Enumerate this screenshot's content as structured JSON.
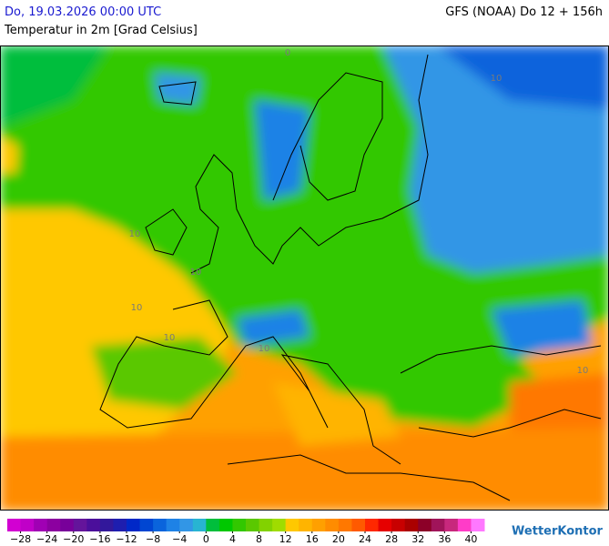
{
  "header": {
    "run": "Do, 19.03.2026 00:00 UTC",
    "variable": "Temperatur in 2m [Grad Celsius]",
    "model": "GFS (NOAA) Do 12 + 156h"
  },
  "map": {
    "contour_labels": [
      "10",
      "10",
      "10",
      "10",
      "10",
      "0",
      "10",
      "10"
    ]
  },
  "legend": {
    "range": [
      -30,
      42
    ],
    "colors": [
      "#d200d2",
      "#c000c8",
      "#a000b4",
      "#8c00a0",
      "#78009a",
      "#64149b",
      "#4b0f9b",
      "#32189b",
      "#1e1eaf",
      "#0028c8",
      "#0046d2",
      "#0a64dc",
      "#1e82e6",
      "#3296e6",
      "#28b4d2",
      "#00be3c",
      "#00c800",
      "#32c800",
      "#5ac800",
      "#82d200",
      "#a0dc00",
      "#ffc800",
      "#ffb400",
      "#ffa000",
      "#ff8c00",
      "#ff7800",
      "#ff5a00",
      "#ff2800",
      "#e60000",
      "#c80000",
      "#aa0000",
      "#8c0028",
      "#a0145a",
      "#c8287d",
      "#ff3cc8",
      "#ff78ff"
    ],
    "ticks": [
      {
        "value": -28,
        "label": "−28"
      },
      {
        "value": -24,
        "label": "−24"
      },
      {
        "value": -20,
        "label": "−20"
      },
      {
        "value": -16,
        "label": "−16"
      },
      {
        "value": -12,
        "label": "−12"
      },
      {
        "value": -8,
        "label": "−8"
      },
      {
        "value": -4,
        "label": "−4"
      },
      0,
      4,
      8,
      12,
      16,
      20,
      24,
      28,
      32,
      36,
      40
    ]
  },
  "logo": "WetterKontor"
}
